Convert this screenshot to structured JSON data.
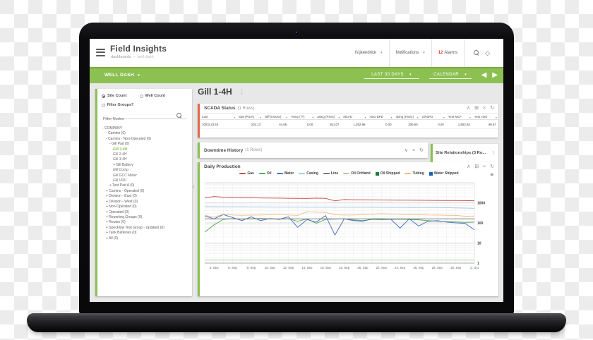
{
  "header": {
    "app_title": "Field Insights",
    "breadcrumb": {
      "parent": "dashboards",
      "separator": "›",
      "current": "well dash"
    },
    "user_menu": "fs\\jkendrick",
    "notifications_label": "Notifications",
    "alarms_count": "12",
    "alarms_label": "Alarms"
  },
  "toolbar": {
    "dash_selector": "WELL DASH",
    "date_range": "LAST 30 DAYS",
    "calendar_label": "CALENDAR"
  },
  "icons": {
    "caret_down": "▾",
    "chevron_up": "∧",
    "chevron_down": "∨",
    "close": "×",
    "refresh": "↻",
    "expand": "⊞",
    "pulse": "≈",
    "kebab": "⋮",
    "menu": "≡",
    "prev": "◀",
    "next": "▶",
    "diamond": "◇",
    "collapse_left": "‹"
  },
  "sidebar": {
    "tabs": [
      {
        "label": "Site Count",
        "selected": true
      },
      {
        "label": "Well Count",
        "selected": false
      }
    ],
    "filter_groups_label": "Filter Groups?",
    "filter_placeholder": "Filter Nodes",
    "tree": [
      {
        "label": "COMPANY",
        "level": 0,
        "prefix": "-"
      },
      {
        "label": "Camino (0)",
        "level": 1,
        "prefix": "-"
      },
      {
        "label": "Camino - Non-Operated (0)",
        "level": 1,
        "prefix": "-"
      },
      {
        "label": "Gill Pad (0)",
        "level": 2,
        "prefix": "-"
      },
      {
        "label": "Gill 1-4H",
        "level": 3,
        "italic": true,
        "selected": true
      },
      {
        "label": "Gill 2-4H",
        "level": 3,
        "italic": true
      },
      {
        "label": "Gill 3-4H",
        "level": 3,
        "italic": true
      },
      {
        "label": "Gill Battery",
        "level": 3,
        "prefix": "+"
      },
      {
        "label": "Gill Comp",
        "level": 3,
        "italic": true
      },
      {
        "label": "Gill GCC Meter",
        "level": 3,
        "italic": true
      },
      {
        "label": "Gill VRU",
        "level": 3,
        "italic": true
      },
      {
        "label": "Test Pad A (0)",
        "level": 2,
        "prefix": "+"
      },
      {
        "label": "Camino - Operated (0)",
        "level": 1,
        "prefix": "+"
      },
      {
        "label": "Division - East (0)",
        "level": 1,
        "prefix": "+"
      },
      {
        "label": "Division - West (0)",
        "level": 1,
        "prefix": "+"
      },
      {
        "label": "Non-Operated (0)",
        "level": 1,
        "prefix": "+"
      },
      {
        "label": "Operated (0)",
        "level": 1,
        "prefix": "+"
      },
      {
        "label": "Reporting Groups (0)",
        "level": 1,
        "prefix": "+"
      },
      {
        "label": "Routes (0)",
        "level": 1,
        "prefix": "+"
      },
      {
        "label": "SpecFlow Test Group - Updated (0)",
        "level": 1,
        "prefix": "+"
      },
      {
        "label": "Tank Batteries (0)",
        "level": 1,
        "prefix": "+"
      },
      {
        "label": "All (0)",
        "level": 1,
        "prefix": "+"
      }
    ]
  },
  "main": {
    "site_title": "Gill 1-4H",
    "scada": {
      "title": "SCADA Status",
      "rows_label": "(1 Rows)",
      "columns": [
        "Last",
        "Stat (PSIA)",
        "Diff (InH2O)",
        "Temp (°F)",
        "asing (PSIG)",
        "MCFD",
        "H2O BPD",
        "ubing (PSIG)",
        "Oil BPD",
        "Yest MCF",
        "Yest H2O"
      ],
      "rows": [
        [
          "10/03 23:45",
          "202.13",
          "44.65",
          "0.00",
          "551.07",
          "1,352.98",
          "0.00",
          "209.55",
          "0.00",
          "1,553.46",
          "90.67"
        ]
      ]
    },
    "downtime": {
      "title": "Downtime History",
      "rows_label": "(1 Rows)"
    },
    "relationships": {
      "title": "Site Relationships",
      "rows_label": "(3 Ro..."
    },
    "production": {
      "title": "Daily Production"
    }
  },
  "chart_data": {
    "type": "line",
    "title": "Daily Production",
    "y_scale": "log",
    "ylim": [
      1,
      10000
    ],
    "y_ticks": [
      1000,
      100,
      10,
      1
    ],
    "grid": true,
    "legend_position": "top",
    "x_labels": [
      "4. Sep",
      "6. Sep",
      "8. Sep",
      "10. Sep",
      "12. Sep",
      "14. Sep",
      "16. Sep",
      "18. Sep",
      "20. Sep",
      "22. Sep",
      "24. Sep",
      "26. Sep",
      "28. Sep",
      "30. Sep",
      "2. Oct"
    ],
    "x_label_start_index": 1,
    "x_label_step": 2,
    "points_per_series": 30,
    "series": [
      {
        "name": "Gas",
        "color": "#c5524a",
        "marker": "line",
        "values": [
          1750,
          2050,
          1900,
          1850,
          1800,
          1780,
          1750,
          1720,
          1700,
          1680,
          1650,
          1640,
          1700,
          1650,
          1250,
          1450,
          1420,
          1400,
          1390,
          1380,
          1370,
          1360,
          1350,
          1340,
          1330,
          1320,
          1310,
          1300,
          1280,
          1260
        ]
      },
      {
        "name": "Oil",
        "color": "#5aa85f",
        "marker": "line",
        "values": [
          35,
          80,
          150,
          162,
          155,
          160,
          165,
          158,
          152,
          160,
          120,
          158,
          95,
          150,
          155,
          160,
          140,
          130,
          150,
          145,
          150,
          152,
          148,
          143,
          130,
          122,
          116,
          112,
          106,
          110
        ]
      },
      {
        "name": "Water",
        "color": "#4a76c7",
        "marker": "line",
        "values": [
          220,
          160,
          260,
          185,
          130,
          200,
          130,
          165,
          150,
          200,
          60,
          145,
          110,
          230,
          25,
          160,
          130,
          120,
          160,
          158,
          155,
          55,
          160,
          70,
          120,
          130,
          110,
          100,
          95,
          45
        ]
      },
      {
        "name": "Casing",
        "color": "#aac9e8",
        "marker": "line",
        "values": [
          640,
          635,
          630,
          628,
          625,
          622,
          620,
          618,
          615,
          612,
          610,
          608,
          606,
          604,
          600,
          598,
          596,
          594,
          592,
          590,
          588,
          586,
          584,
          582,
          580,
          575,
          570,
          560,
          545,
          530
        ]
      },
      {
        "name": "Line",
        "color": "#7b7b7b",
        "marker": "line",
        "values": [
          160,
          160,
          160,
          160,
          160,
          160,
          160,
          160,
          160,
          160,
          160,
          160,
          160,
          160,
          160,
          160,
          160,
          160,
          160,
          160,
          160,
          160,
          160,
          160,
          160,
          160,
          160,
          160,
          160,
          160
        ]
      },
      {
        "name": "Oil OnHand",
        "color": "#abd6a0",
        "marker": "line",
        "values": [
          1.4,
          1.4,
          1.4,
          1.4,
          1.4,
          1.4,
          1.4,
          1.4,
          1.4,
          1.4,
          1.4,
          1.4,
          1.4,
          1.4,
          1.4,
          1.4,
          1.4,
          1.4,
          1.4,
          1.4,
          1.4,
          1.4,
          1.4,
          1.4,
          1.4,
          1.4,
          1.4,
          1.4,
          1.4,
          1.4
        ]
      },
      {
        "name": "Oil Shipped",
        "color": "#1e7e34",
        "marker": "square",
        "values": []
      },
      {
        "name": "Tubing",
        "color": "#f2bd8b",
        "marker": "line",
        "values": [
          240,
          195,
          270,
          250,
          240,
          245,
          250,
          255,
          265,
          250,
          235,
          355,
          345,
          330,
          255,
          245,
          250,
          255,
          265,
          285,
          275,
          265,
          255,
          260,
          250,
          245,
          240,
          235,
          215,
          220
        ]
      },
      {
        "name": "Water Shipped",
        "color": "#1a5fb4",
        "marker": "square",
        "values": []
      }
    ]
  }
}
